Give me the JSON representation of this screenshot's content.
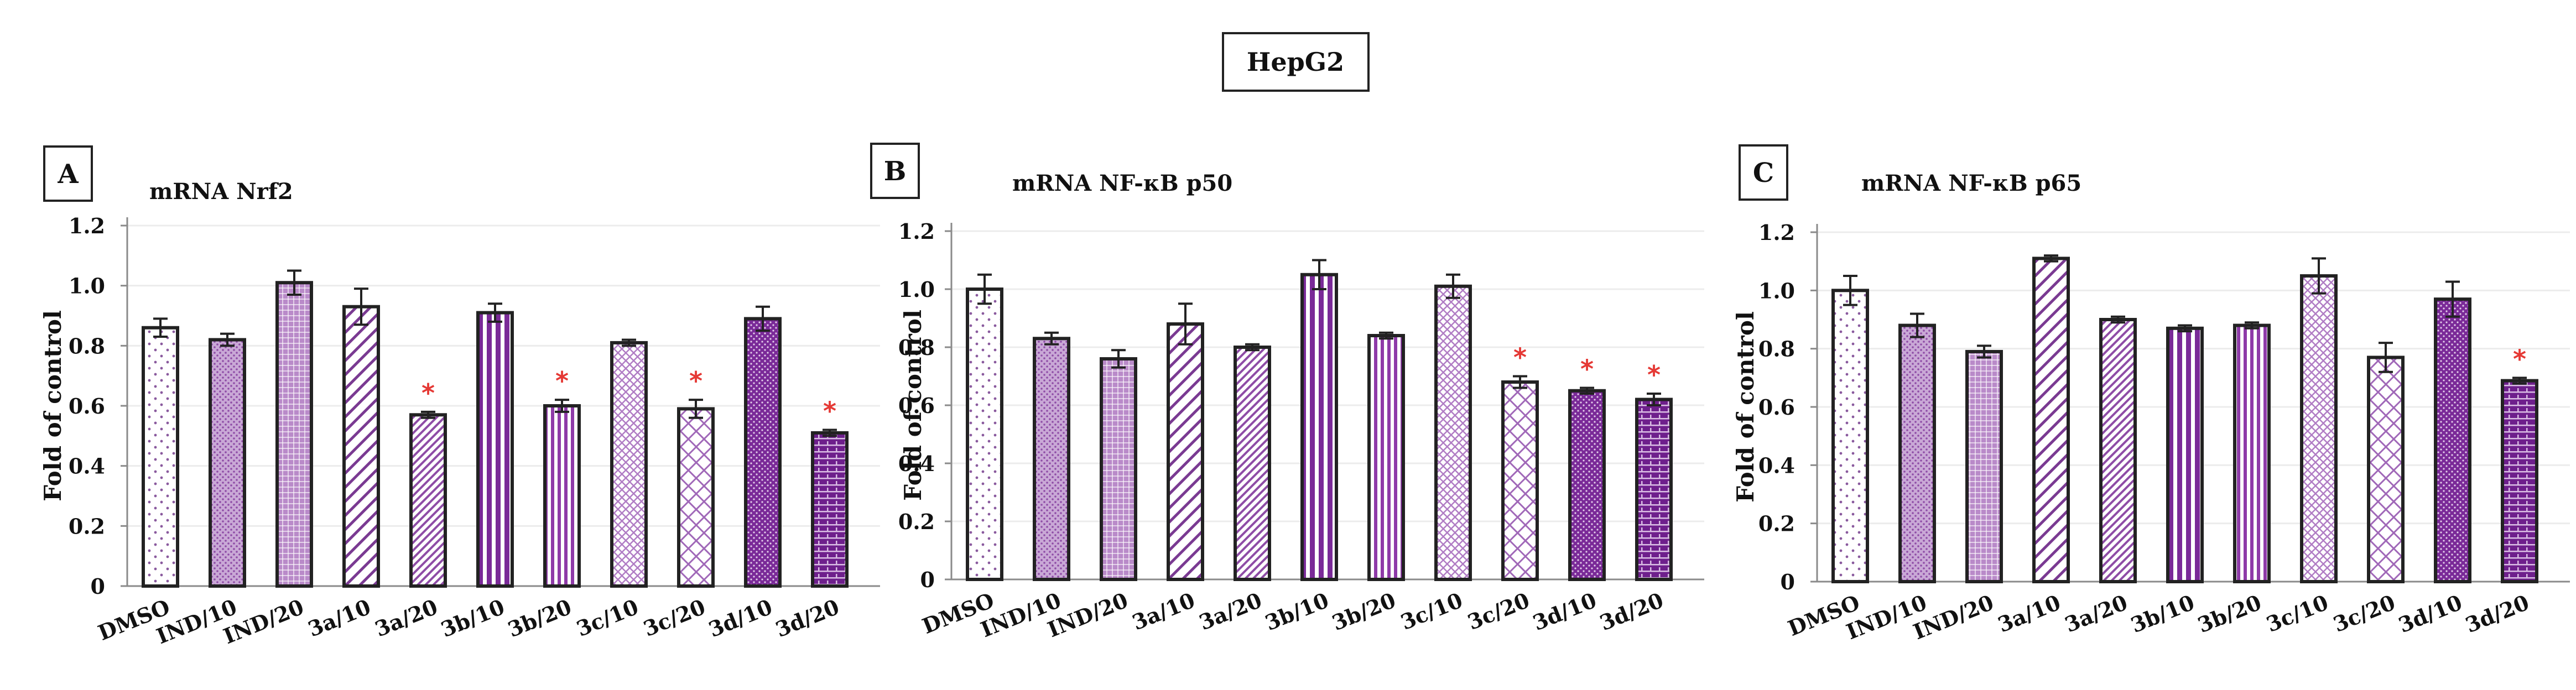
{
  "figure_title": "HepG2",
  "colors": {
    "light_purple": "#c9a8d6",
    "mid_purple": "#a25bb6",
    "dark_purple": "#7a2a98",
    "star_red": "#e53935",
    "stroke": "#222222"
  },
  "chart_data": [
    {
      "type": "bar",
      "panel_letter": "A",
      "title": "mRNA Nrf2",
      "ylabel": "Fold of control",
      "xlabel": "",
      "ylim": [
        0,
        1.2
      ],
      "yticks": [
        "0",
        "0.2",
        "0.4",
        "0.6",
        "0.8",
        "1.0",
        "1.2"
      ],
      "categories": [
        "DMSO",
        "IND/10",
        "IND/20",
        "3a/10",
        "3a/20",
        "3b/10",
        "3b/20",
        "3c/10",
        "3c/20",
        "3d/10",
        "3d/20"
      ],
      "values": [
        0.86,
        0.82,
        1.01,
        0.93,
        0.57,
        0.91,
        0.6,
        0.81,
        0.59,
        0.89,
        0.51
      ],
      "errors": [
        0.03,
        0.02,
        0.04,
        0.06,
        0.01,
        0.03,
        0.02,
        0.01,
        0.03,
        0.04,
        0.01
      ],
      "significant": [
        false,
        false,
        false,
        false,
        true,
        false,
        true,
        false,
        true,
        false,
        true
      ]
    },
    {
      "type": "bar",
      "panel_letter": "B",
      "title": "mRNA NF-κB p50",
      "ylabel": "Fold of control",
      "xlabel": "",
      "ylim": [
        0,
        1.2
      ],
      "yticks": [
        "0",
        "0.2",
        "0.4",
        "0.6",
        "0.8",
        "1.0",
        "1.2"
      ],
      "categories": [
        "DMSO",
        "IND/10",
        "IND/20",
        "3a/10",
        "3a/20",
        "3b/10",
        "3b/20",
        "3c/10",
        "3c/20",
        "3d/10",
        "3d/20"
      ],
      "values": [
        1.0,
        0.83,
        0.76,
        0.88,
        0.8,
        1.05,
        0.84,
        1.01,
        0.68,
        0.65,
        0.62
      ],
      "errors": [
        0.05,
        0.02,
        0.03,
        0.07,
        0.01,
        0.05,
        0.01,
        0.04,
        0.02,
        0.01,
        0.02
      ],
      "significant": [
        false,
        false,
        false,
        false,
        false,
        false,
        false,
        false,
        true,
        true,
        true
      ]
    },
    {
      "type": "bar",
      "panel_letter": "C",
      "title": "mRNA NF-κB p65",
      "ylabel": "Fold of control",
      "xlabel": "",
      "ylim": [
        0,
        1.2
      ],
      "yticks": [
        "0",
        "0.2",
        "0.4",
        "0.6",
        "0.8",
        "1.0",
        "1.2"
      ],
      "categories": [
        "DMSO",
        "IND/10",
        "IND/20",
        "3a/10",
        "3a/20",
        "3b/10",
        "3b/20",
        "3c/10",
        "3c/20",
        "3d/10",
        "3d/20"
      ],
      "values": [
        1.0,
        0.88,
        0.79,
        1.11,
        0.9,
        0.87,
        0.88,
        1.05,
        0.77,
        0.97,
        0.69
      ],
      "errors": [
        0.05,
        0.04,
        0.02,
        0.01,
        0.01,
        0.01,
        0.01,
        0.06,
        0.05,
        0.06,
        0.01
      ],
      "significant": [
        false,
        false,
        false,
        false,
        false,
        false,
        false,
        false,
        false,
        false,
        true
      ]
    }
  ]
}
